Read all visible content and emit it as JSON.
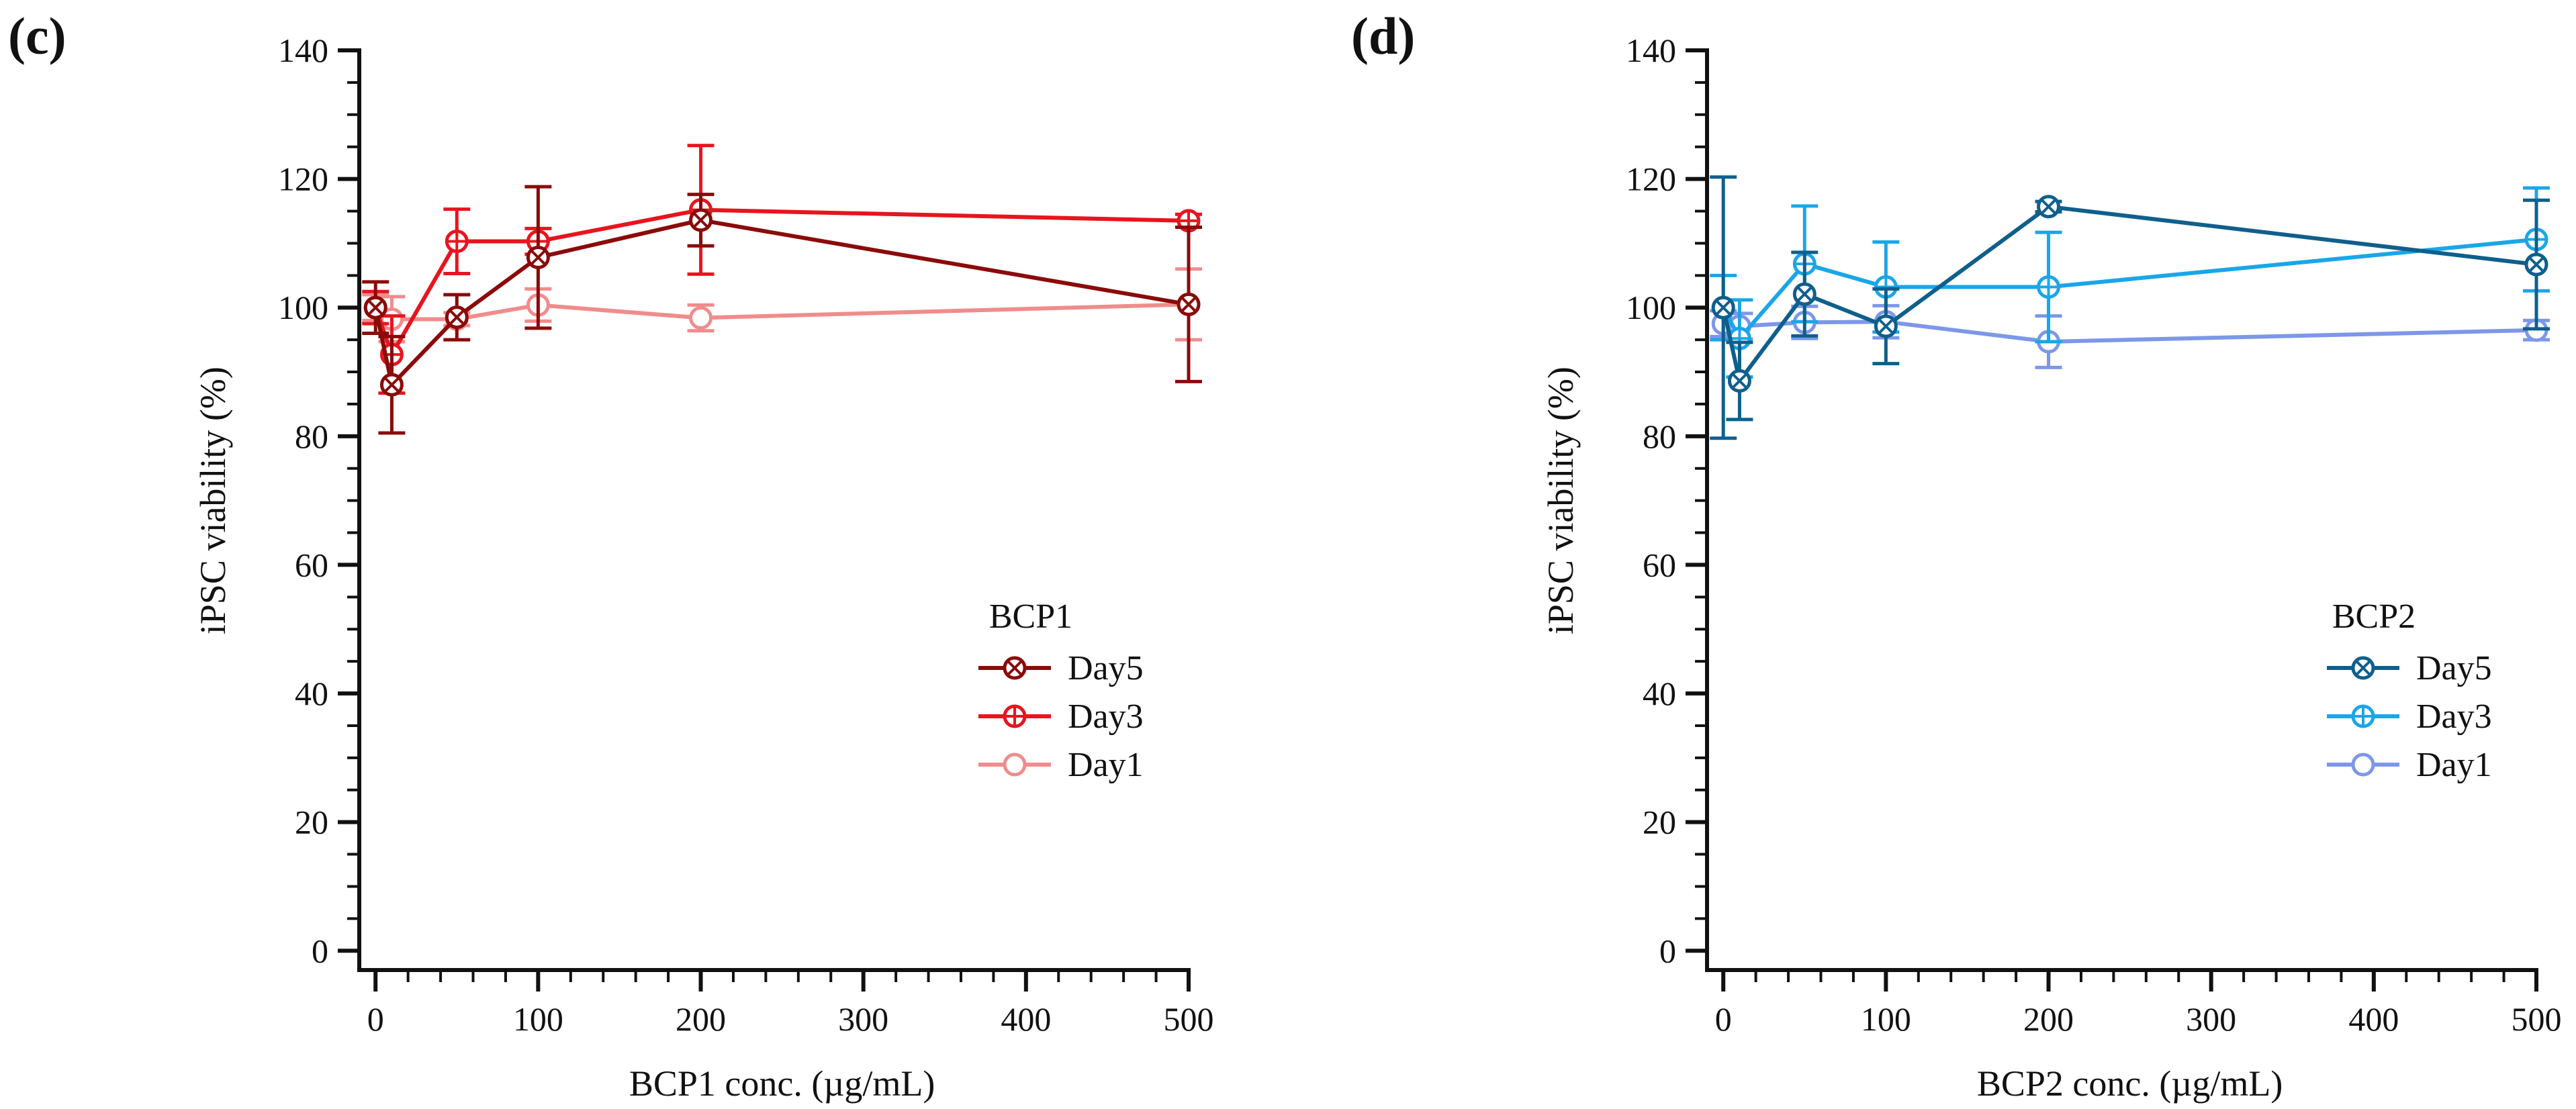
{
  "chart_data": [
    {
      "type": "line",
      "panel_label": "(c)",
      "xlabel": "BCP1 conc. (µg/mL)",
      "ylabel": "iPSC viability (%)",
      "xlim": [
        -10,
        500
      ],
      "ylim": [
        -3,
        140
      ],
      "xticks": [
        0,
        100,
        200,
        300,
        400,
        500
      ],
      "xtick_labels": [
        "0",
        "100",
        "200",
        "300",
        "400",
        "500"
      ],
      "yticks": [
        0,
        20,
        40,
        60,
        80,
        100,
        120,
        140
      ],
      "ytick_labels": [
        "0",
        "20",
        "40",
        "60",
        "80",
        "100",
        "120",
        "140"
      ],
      "x": [
        0,
        10,
        50,
        100,
        200,
        500
      ],
      "legend_title": "BCP1",
      "legend_position": "center-right",
      "series": [
        {
          "name": "Day5",
          "color": "#8b0a0a",
          "marker": "circle-x",
          "values": [
            100,
            88,
            98.5,
            107.8,
            113.6,
            100.5
          ],
          "errors": [
            4,
            7.5,
            3.5,
            11,
            4,
            12
          ]
        },
        {
          "name": "Day3",
          "color": "#e8141e",
          "marker": "circle-plus",
          "values": [
            100,
            92.7,
            110.3,
            110.3,
            115.2,
            113.5
          ],
          "errors": [
            2.5,
            6,
            5,
            2,
            10,
            1
          ]
        },
        {
          "name": "Day1",
          "color": "#f08c8c",
          "marker": "circle",
          "values": [
            100,
            98.2,
            98.2,
            100.4,
            98.4,
            100.5
          ],
          "errors": [
            2,
            3.5,
            1,
            2.5,
            2,
            5.5
          ]
        }
      ]
    },
    {
      "type": "line",
      "panel_label": "(d)",
      "xlabel": "BCP2 conc. (µg/mL)",
      "ylabel": "iPSC viability (%)",
      "xlim": [
        -10,
        500
      ],
      "ylim": [
        -3,
        140
      ],
      "xticks": [
        0,
        100,
        200,
        300,
        400,
        500
      ],
      "xtick_labels": [
        "0",
        "100",
        "200",
        "300",
        "400",
        "500"
      ],
      "yticks": [
        0,
        20,
        40,
        60,
        80,
        100,
        120,
        140
      ],
      "ytick_labels": [
        "0",
        "20",
        "40",
        "60",
        "80",
        "100",
        "120",
        "140"
      ],
      "x": [
        0,
        10,
        50,
        100,
        200,
        500
      ],
      "legend_title": "BCP2",
      "legend_position": "center-right",
      "series": [
        {
          "name": "Day5",
          "color": "#0f5f8c",
          "marker": "circle-x",
          "values": [
            100,
            88.6,
            102.1,
            97.1,
            115.7,
            106.7
          ],
          "errors": [
            20.3,
            6,
            6.5,
            5.8,
            0.8,
            10
          ]
        },
        {
          "name": "Day3",
          "color": "#1aa6e8",
          "marker": "circle-plus",
          "values": [
            100,
            95.2,
            106.8,
            103.2,
            103.2,
            110.6
          ],
          "errors": [
            5,
            6,
            9,
            7,
            8.5,
            8
          ]
        },
        {
          "name": "Day1",
          "color": "#7d97e8",
          "marker": "circle",
          "values": [
            97.5,
            97.1,
            97.7,
            97.8,
            94.7,
            96.5
          ],
          "errors": [
            2,
            2,
            2.5,
            2.5,
            4,
            1.5
          ]
        }
      ]
    }
  ]
}
